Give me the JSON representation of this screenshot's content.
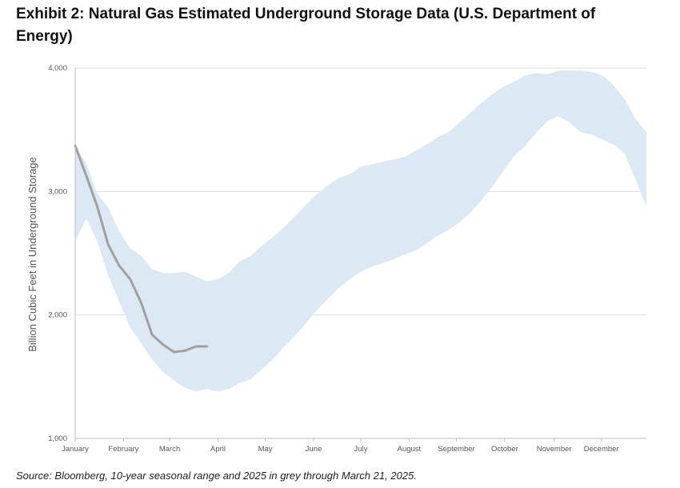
{
  "title": "Exhibit 2: Natural Gas Estimated Underground Storage Data (U.S. Department of Energy)",
  "source": "Source: Bloomberg, 10-year seasonal range and 2025 in grey through March 21, 2025.",
  "colors": {
    "band": "#dde8f5",
    "line": "#a0a0a0",
    "grid": "#dddddd",
    "axis": "#bbbbbb"
  },
  "chart_data": {
    "type": "area",
    "ylabel": "Billion Cubic Feet in Underground Storage",
    "ylim": [
      1000,
      4000
    ],
    "yticks": [
      1000,
      2000,
      3000,
      4000
    ],
    "ytick_labels": [
      "1,000",
      "2,000",
      "3,000",
      "4,000"
    ],
    "x_range_weeks": [
      0,
      52
    ],
    "month_ticks": [
      {
        "label": "January",
        "week": 0
      },
      {
        "label": "February",
        "week": 4.4
      },
      {
        "label": "March",
        "week": 8.6
      },
      {
        "label": "April",
        "week": 13
      },
      {
        "label": "May",
        "week": 17.3
      },
      {
        "label": "June",
        "week": 21.7
      },
      {
        "label": "July",
        "week": 26
      },
      {
        "label": "August",
        "week": 30.4
      },
      {
        "label": "September",
        "week": 34.7
      },
      {
        "label": "October",
        "week": 39.1
      },
      {
        "label": "November",
        "week": 43.6
      },
      {
        "label": "December",
        "week": 47.9
      }
    ],
    "series": [
      {
        "kind": "range",
        "upper": [
          [
            0,
            3370
          ],
          [
            1,
            3230
          ],
          [
            2,
            2980
          ],
          [
            3,
            2870
          ],
          [
            4,
            2680
          ],
          [
            5,
            2540
          ],
          [
            6,
            2480
          ],
          [
            7,
            2370
          ],
          [
            8,
            2340
          ],
          [
            9,
            2340
          ],
          [
            10,
            2350
          ],
          [
            11,
            2310
          ],
          [
            12,
            2270
          ],
          [
            13,
            2290
          ],
          [
            14,
            2340
          ],
          [
            15,
            2440
          ],
          [
            16,
            2480
          ],
          [
            17,
            2560
          ],
          [
            18,
            2630
          ],
          [
            19,
            2710
          ],
          [
            20,
            2800
          ],
          [
            21,
            2890
          ],
          [
            22,
            2980
          ],
          [
            23,
            3050
          ],
          [
            24,
            3110
          ],
          [
            25,
            3140
          ],
          [
            26,
            3200
          ],
          [
            27,
            3220
          ],
          [
            28,
            3240
          ],
          [
            29,
            3260
          ],
          [
            30,
            3280
          ],
          [
            31,
            3330
          ],
          [
            32,
            3380
          ],
          [
            33,
            3440
          ],
          [
            34,
            3480
          ],
          [
            35,
            3560
          ],
          [
            36,
            3640
          ],
          [
            37,
            3720
          ],
          [
            38,
            3790
          ],
          [
            39,
            3850
          ],
          [
            40,
            3890
          ],
          [
            41,
            3940
          ],
          [
            42,
            3960
          ],
          [
            43,
            3950
          ],
          [
            44,
            3980
          ],
          [
            45,
            3980
          ],
          [
            46,
            3980
          ],
          [
            47,
            3970
          ],
          [
            48,
            3940
          ],
          [
            49,
            3860
          ],
          [
            50,
            3750
          ],
          [
            51,
            3590
          ],
          [
            52,
            3480
          ]
        ],
        "lower": [
          [
            0,
            2600
          ],
          [
            1,
            2780
          ],
          [
            2,
            2600
          ],
          [
            3,
            2320
          ],
          [
            4,
            2110
          ],
          [
            5,
            1900
          ],
          [
            6,
            1770
          ],
          [
            7,
            1640
          ],
          [
            8,
            1540
          ],
          [
            9,
            1470
          ],
          [
            10,
            1410
          ],
          [
            11,
            1380
          ],
          [
            12,
            1400
          ],
          [
            13,
            1380
          ],
          [
            14,
            1400
          ],
          [
            15,
            1450
          ],
          [
            16,
            1480
          ],
          [
            17,
            1560
          ],
          [
            18,
            1640
          ],
          [
            19,
            1740
          ],
          [
            20,
            1830
          ],
          [
            21,
            1930
          ],
          [
            22,
            2040
          ],
          [
            23,
            2130
          ],
          [
            24,
            2220
          ],
          [
            25,
            2290
          ],
          [
            26,
            2350
          ],
          [
            27,
            2390
          ],
          [
            28,
            2420
          ],
          [
            29,
            2450
          ],
          [
            30,
            2490
          ],
          [
            31,
            2520
          ],
          [
            32,
            2580
          ],
          [
            33,
            2640
          ],
          [
            34,
            2690
          ],
          [
            35,
            2750
          ],
          [
            36,
            2830
          ],
          [
            37,
            2930
          ],
          [
            38,
            3040
          ],
          [
            39,
            3170
          ],
          [
            40,
            3290
          ],
          [
            41,
            3370
          ],
          [
            42,
            3480
          ],
          [
            43,
            3570
          ],
          [
            44,
            3610
          ],
          [
            45,
            3560
          ],
          [
            46,
            3480
          ],
          [
            47,
            3460
          ],
          [
            48,
            3420
          ],
          [
            49,
            3380
          ],
          [
            50,
            3310
          ],
          [
            51,
            3100
          ],
          [
            52,
            2880
          ]
        ]
      },
      {
        "kind": "line",
        "x": [
          0,
          1,
          2,
          3,
          4,
          5,
          6,
          7,
          8,
          9,
          10,
          11,
          12
        ],
        "values": [
          3370,
          3130,
          2880,
          2570,
          2400,
          2290,
          2100,
          1840,
          1760,
          1700,
          1710,
          1745,
          1745
        ]
      }
    ]
  }
}
